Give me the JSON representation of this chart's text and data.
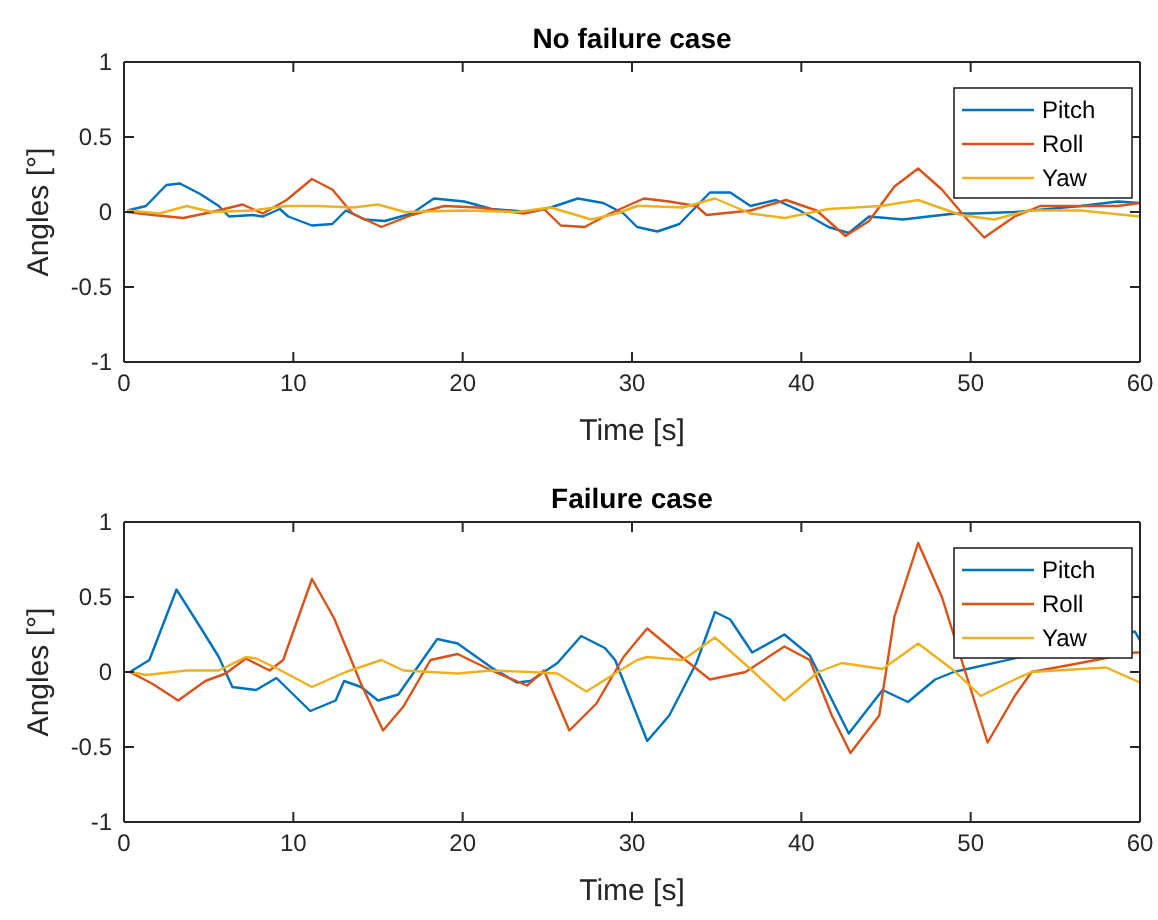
{
  "chart_data": [
    {
      "type": "line",
      "title": "No failure case",
      "xlabel": "Time [s]",
      "ylabel": "Angles [°]",
      "xlim": [
        0,
        60
      ],
      "xticks": [
        0,
        10,
        20,
        30,
        40,
        50,
        60
      ],
      "ylim": [
        -1,
        1
      ],
      "yticks": [
        -1,
        -0.5,
        0,
        0.5,
        1
      ],
      "grid": false,
      "legend": "top right",
      "series": [
        {
          "name": "Pitch",
          "color": "#0072bd",
          "x": [
            0.2,
            1.3,
            2.5,
            3.3,
            4.5,
            5.6,
            6.2,
            7.6,
            8.2,
            9.2,
            9.7,
            11.1,
            12.3,
            13.1,
            14.2,
            15.4,
            17,
            18.3,
            20.1,
            21.7,
            24,
            25.2,
            26.8,
            28.3,
            29.5,
            30.3,
            31.5,
            32.8,
            34.6,
            35.8,
            37,
            38.5,
            39.9,
            41.6,
            42.8,
            44,
            46,
            47.5,
            49.1,
            50.2,
            52.6,
            56.5,
            58.7,
            60
          ],
          "values": [
            0.01,
            0.04,
            0.18,
            0.19,
            0.12,
            0.04,
            -0.03,
            -0.02,
            -0.03,
            0.02,
            -0.03,
            -0.09,
            -0.08,
            0.01,
            -0.05,
            -0.06,
            -0.01,
            0.09,
            0.07,
            0.02,
            0,
            0.03,
            0.09,
            0.06,
            -0.01,
            -0.1,
            -0.13,
            -0.08,
            0.13,
            0.13,
            0.04,
            0.08,
            0.01,
            -0.1,
            -0.14,
            -0.03,
            -0.05,
            -0.03,
            -0.01,
            -0.01,
            0,
            0.04,
            0.07,
            0.06
          ]
        },
        {
          "name": "Roll",
          "color": "#d95319",
          "x": [
            0.2,
            1.7,
            3.5,
            5.2,
            7,
            8.2,
            9.6,
            11.1,
            12.3,
            13.5,
            15.2,
            17,
            18.9,
            20.9,
            23.6,
            24.8,
            25.8,
            27.2,
            28.7,
            30.3,
            30.7,
            32.2,
            33.8,
            34.4,
            37,
            39.1,
            40.9,
            42.6,
            44,
            45.5,
            46.9,
            48.3,
            49.8,
            50.8,
            52.6,
            54.1,
            56.5,
            58.7,
            60
          ],
          "values": [
            0,
            -0.02,
            -0.04,
            0,
            0.05,
            -0.01,
            0.08,
            0.22,
            0.15,
            -0.01,
            -0.1,
            -0.02,
            0.04,
            0.03,
            -0.01,
            0.02,
            -0.09,
            -0.1,
            -0.01,
            0.07,
            0.09,
            0.07,
            0.04,
            -0.02,
            0.01,
            0.08,
            0.01,
            -0.16,
            -0.06,
            0.17,
            0.29,
            0.15,
            -0.05,
            -0.17,
            -0.03,
            0.04,
            0.04,
            0.04,
            0.06
          ]
        },
        {
          "name": "Yaw",
          "color": "#edb120",
          "x": [
            0.2,
            2.1,
            3.7,
            5.2,
            7.6,
            9.6,
            11.5,
            13.5,
            15,
            16.6,
            20.1,
            23.2,
            25.2,
            27.6,
            29.1,
            30.3,
            30.7,
            33,
            34.9,
            37,
            39,
            41.6,
            44.7,
            46.9,
            49.4,
            51.4,
            53.4,
            56.5,
            60
          ],
          "values": [
            0.01,
            -0.01,
            0.04,
            0,
            0.01,
            0.04,
            0.04,
            0.03,
            0.05,
            0,
            0.01,
            0,
            0.03,
            -0.05,
            -0.01,
            0.04,
            0.04,
            0.03,
            0.09,
            -0.01,
            -0.04,
            0.02,
            0.04,
            0.08,
            -0.02,
            -0.05,
            0.01,
            0.01,
            -0.03
          ]
        }
      ]
    },
    {
      "type": "line",
      "title": "Failure case",
      "xlabel": "Time [s]",
      "ylabel": "Angles [°]",
      "xlim": [
        0,
        60
      ],
      "xticks": [
        0,
        10,
        20,
        30,
        40,
        50,
        60
      ],
      "ylim": [
        -1,
        1
      ],
      "yticks": [
        -1,
        -0.5,
        0,
        0.5,
        1
      ],
      "grid": false,
      "legend": "top right",
      "series": [
        {
          "name": "Pitch",
          "color": "#0072bd",
          "x": [
            0.35,
            1.5,
            3.1,
            4.5,
            5.6,
            6.4,
            7.8,
            9,
            11,
            12.5,
            13,
            14,
            15,
            16.2,
            18.5,
            19.7,
            21.7,
            23.2,
            24,
            25.6,
            27,
            28.4,
            29,
            30.9,
            32.2,
            33.8,
            34.9,
            35.8,
            37.1,
            39,
            40.5,
            42.8,
            44.8,
            46.3,
            47.9,
            49,
            59.7,
            60
          ],
          "values": [
            0,
            0.08,
            0.55,
            0.3,
            0.1,
            -0.1,
            -0.12,
            -0.04,
            -0.26,
            -0.19,
            -0.06,
            -0.1,
            -0.19,
            -0.15,
            0.22,
            0.19,
            0.03,
            -0.07,
            -0.06,
            0.06,
            0.24,
            0.16,
            0.08,
            -0.46,
            -0.29,
            0.06,
            0.4,
            0.35,
            0.13,
            0.25,
            0.11,
            -0.41,
            -0.12,
            -0.2,
            -0.05,
            0,
            0.27,
            0.21
          ]
        },
        {
          "name": "Roll",
          "color": "#d95319",
          "x": [
            0.35,
            1.7,
            3.2,
            4.8,
            6,
            7.2,
            8.6,
            9.4,
            11.1,
            12.4,
            14,
            15.3,
            16.5,
            18.1,
            19.7,
            21.7,
            23.8,
            24.8,
            26.3,
            27.9,
            29.5,
            30.3,
            30.9,
            32.6,
            34.6,
            36.7,
            39,
            40.5,
            41.8,
            42.9,
            44.6,
            45.5,
            46.9,
            48.3,
            49.6,
            51,
            52.6,
            53.6,
            56,
            59.7,
            60
          ],
          "values": [
            0,
            -0.08,
            -0.19,
            -0.06,
            -0.01,
            0.09,
            0.01,
            0.08,
            0.62,
            0.36,
            -0.08,
            -0.39,
            -0.23,
            0.08,
            0.12,
            0.01,
            -0.09,
            0.01,
            -0.39,
            -0.21,
            0.1,
            0.21,
            0.29,
            0.13,
            -0.05,
            0,
            0.17,
            0.08,
            -0.29,
            -0.54,
            -0.29,
            0.37,
            0.86,
            0.5,
            0.03,
            -0.47,
            -0.16,
            0,
            0.05,
            0.13,
            0.13
          ]
        },
        {
          "name": "Yaw",
          "color": "#edb120",
          "x": [
            0.35,
            1.3,
            3.7,
            5.6,
            7.2,
            7.8,
            9.1,
            11.1,
            13.1,
            15.2,
            16.5,
            19.7,
            21.7,
            24,
            25.6,
            27.3,
            29,
            30.3,
            30.9,
            33,
            34.9,
            37,
            39,
            41,
            42.4,
            44.8,
            46.9,
            49,
            50.6,
            52.6,
            53.6,
            58,
            60
          ],
          "values": [
            0,
            -0.02,
            0.01,
            0.01,
            0.1,
            0.09,
            0.02,
            -0.1,
            0,
            0.08,
            0.01,
            -0.01,
            0.01,
            0,
            -0.01,
            -0.13,
            -0.01,
            0.08,
            0.1,
            0.08,
            0.23,
            0.02,
            -0.19,
            0,
            0.06,
            0.02,
            0.19,
            0.01,
            -0.16,
            -0.05,
            0,
            0.03,
            -0.07
          ]
        }
      ]
    }
  ]
}
